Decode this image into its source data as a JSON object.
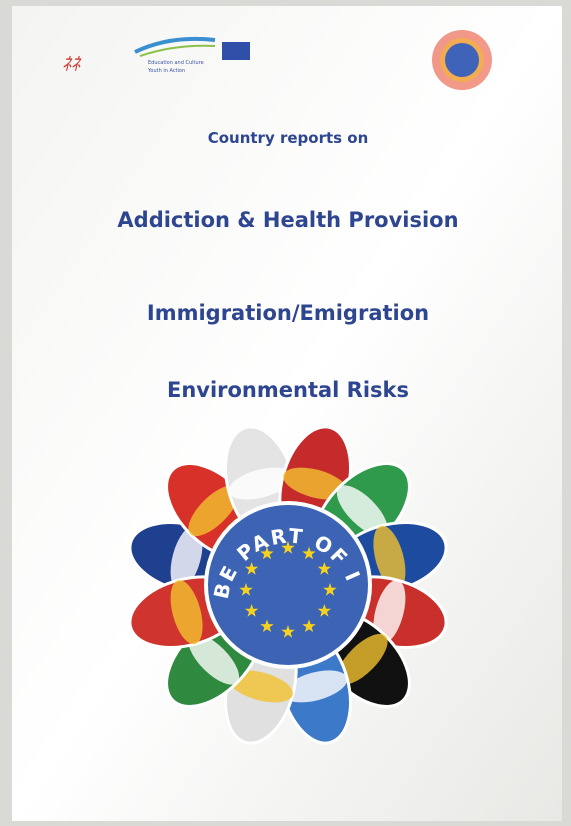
{
  "header": {
    "programme": [
      "Education and Culture",
      "Youth in Action"
    ]
  },
  "cover": {
    "intro": "Country reports on",
    "topics": [
      "Addiction & Health Provision",
      "Immigration/Emigration",
      "Environmental Risks"
    ],
    "slogan": "BE PART OF IT!"
  }
}
